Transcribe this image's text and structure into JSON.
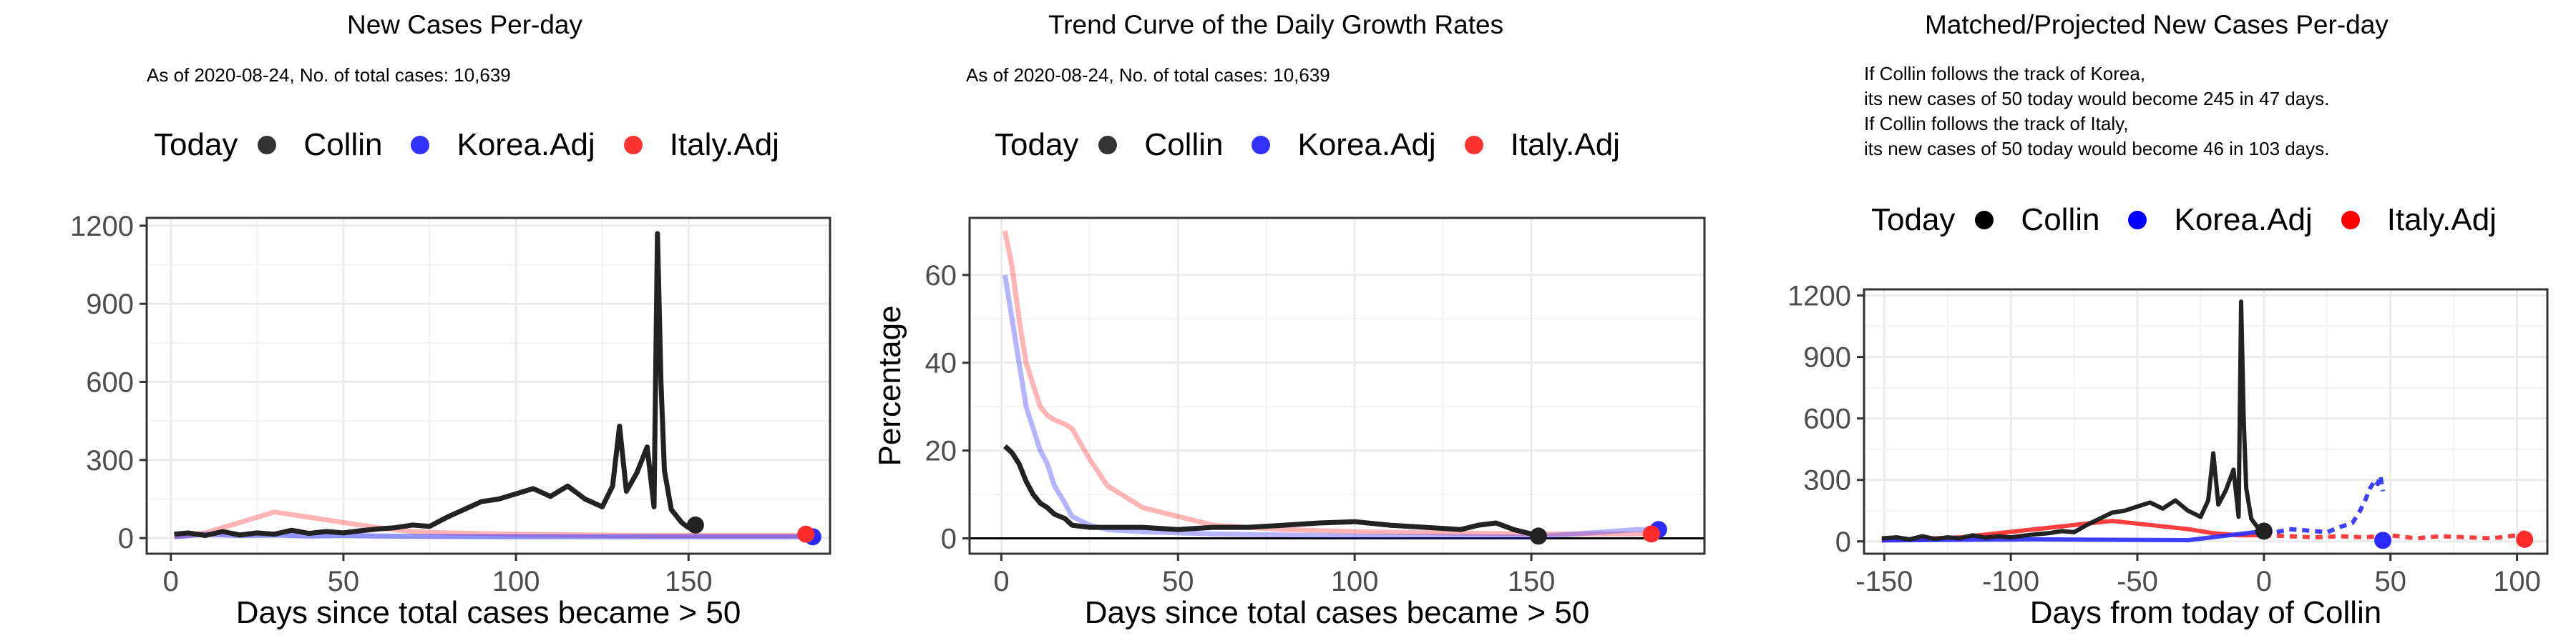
{
  "colors": {
    "collin": "#222222",
    "korea": "#2a2aff",
    "italy": "#ff2a2a",
    "grid": "#ebebeb",
    "frame": "#333333"
  },
  "legend": {
    "title": "Today",
    "items": [
      "Collin",
      "Korea.Adj",
      "Italy.Adj"
    ]
  },
  "panels": {
    "p1": {
      "title": "New Cases Per-day",
      "subtitle": "As of 2020-08-24, No. of total cases: 10,639"
    },
    "p2": {
      "title": "Trend Curve of the Daily Growth Rates",
      "subtitle": "As of 2020-08-24, No. of total cases: 10,639"
    },
    "p3": {
      "title": "Matched/Projected New Cases Per-day",
      "lines": [
        "If Collin follows the track of Korea,",
        "its new cases of 50 today would become 245 in 47 days.",
        "If Collin follows the track of Italy,",
        "its new cases of 50 today would become 46 in 103 days."
      ]
    }
  },
  "chart_data": [
    {
      "type": "line",
      "title": "New Cases Per-day",
      "subtitle": "As of 2020-08-24, No. of total cases: 10,639",
      "xlabel": "Days since total cases became > 50",
      "ylabel": "",
      "xlim": [
        -7,
        191
      ],
      "ylim": [
        -60,
        1230
      ],
      "xticks": [
        0,
        50,
        100,
        150
      ],
      "yticks": [
        0,
        300,
        600,
        900,
        1200
      ],
      "legend_title": "Today",
      "legend_position": "top",
      "grid": true,
      "series": [
        {
          "name": "Collin",
          "color": "#222222",
          "x": [
            1,
            5,
            10,
            15,
            20,
            25,
            30,
            35,
            40,
            45,
            50,
            55,
            60,
            65,
            70,
            75,
            80,
            85,
            90,
            95,
            100,
            105,
            110,
            115,
            120,
            125,
            128,
            130,
            132,
            135,
            138,
            140,
            141,
            142,
            143,
            145,
            148,
            150,
            152
          ],
          "y": [
            15,
            20,
            10,
            25,
            12,
            20,
            15,
            30,
            18,
            25,
            20,
            28,
            35,
            40,
            50,
            45,
            80,
            110,
            140,
            150,
            170,
            190,
            160,
            200,
            150,
            120,
            200,
            430,
            180,
            250,
            350,
            120,
            1170,
            600,
            260,
            110,
            60,
            40,
            50
          ]
        },
        {
          "name": "Korea.Adj",
          "color": "#2a2aff",
          "x": [
            1,
            10,
            20,
            30,
            40,
            50,
            60,
            80,
            100,
            120,
            140,
            160,
            180,
            185
          ],
          "y": [
            5,
            15,
            10,
            12,
            8,
            10,
            8,
            6,
            5,
            5,
            5,
            5,
            5,
            5
          ]
        },
        {
          "name": "Italy.Adj",
          "color": "#ff2a2a",
          "x": [
            1,
            10,
            20,
            25,
            30,
            35,
            40,
            45,
            50,
            60,
            70,
            80,
            100,
            120,
            140,
            160,
            180,
            185
          ],
          "y": [
            5,
            20,
            60,
            80,
            100,
            90,
            80,
            70,
            60,
            40,
            25,
            20,
            15,
            12,
            10,
            10,
            10,
            10
          ]
        }
      ],
      "today_points": [
        {
          "name": "Collin",
          "x": 152,
          "y": 50
        },
        {
          "name": "Korea.Adj",
          "x": 186,
          "y": 5
        },
        {
          "name": "Italy.Adj",
          "x": 184,
          "y": 15
        }
      ]
    },
    {
      "type": "line",
      "title": "Trend Curve of the Daily Growth Rates",
      "subtitle": "As of 2020-08-24, No. of total cases: 10,639",
      "xlabel": "Days since total cases became > 50",
      "ylabel": "Percentage",
      "xlim": [
        -9,
        199
      ],
      "ylim": [
        -3.5,
        73
      ],
      "xticks": [
        0,
        50,
        100,
        150
      ],
      "yticks": [
        0,
        20,
        40,
        60
      ],
      "legend_title": "Today",
      "legend_position": "top",
      "grid": true,
      "series": [
        {
          "name": "Collin",
          "color": "#222222",
          "x": [
            1,
            3,
            5,
            7,
            9,
            11,
            13,
            15,
            18,
            20,
            25,
            30,
            40,
            50,
            60,
            70,
            80,
            90,
            100,
            110,
            120,
            130,
            135,
            140,
            145,
            150,
            152
          ],
          "y": [
            21,
            19.5,
            17,
            13,
            10,
            8,
            7,
            5.5,
            4.5,
            3,
            2.5,
            2.5,
            2.5,
            2,
            2.5,
            2.5,
            3,
            3.5,
            3.8,
            3,
            2.5,
            2,
            3,
            3.5,
            2,
            1,
            1
          ]
        },
        {
          "name": "Korea.Adj",
          "color": "#2a2aff",
          "x": [
            1,
            3,
            5,
            7,
            9,
            11,
            13,
            15,
            18,
            20,
            25,
            30,
            40,
            60,
            100,
            150,
            180,
            185
          ],
          "y": [
            60,
            50,
            40,
            30,
            25,
            20,
            17,
            12,
            8,
            5,
            3,
            2,
            1.5,
            1,
            0.5,
            0.3,
            2,
            2
          ]
        },
        {
          "name": "Italy.Adj",
          "color": "#ff2a2a",
          "x": [
            1,
            3,
            5,
            7,
            9,
            11,
            13,
            15,
            18,
            20,
            25,
            30,
            40,
            50,
            60,
            80,
            100,
            150,
            180,
            185
          ],
          "y": [
            70,
            62,
            50,
            40,
            35,
            30,
            28,
            27,
            26,
            25,
            18,
            12,
            7,
            5,
            3,
            2,
            1.5,
            1,
            1,
            1
          ]
        }
      ],
      "today_points": [
        {
          "name": "Collin",
          "x": 152,
          "y": 0.5
        },
        {
          "name": "Korea.Adj",
          "x": 186,
          "y": 2
        },
        {
          "name": "Italy.Adj",
          "x": 184,
          "y": 1
        }
      ]
    },
    {
      "type": "line",
      "title": "Matched/Projected New Cases Per-day",
      "xlabel": "Days from today of Collin",
      "ylabel": "",
      "xlim": [
        -158,
        112
      ],
      "ylim": [
        -60,
        1230
      ],
      "xticks": [
        -150,
        -100,
        -50,
        0,
        50,
        100
      ],
      "yticks": [
        0,
        300,
        600,
        900,
        1200
      ],
      "legend_title": "Today",
      "legend_position": "top",
      "grid": true,
      "series": [
        {
          "name": "Collin",
          "color": "#222222",
          "x": [
            -151,
            -145,
            -140,
            -135,
            -130,
            -125,
            -120,
            -115,
            -110,
            -105,
            -100,
            -95,
            -90,
            -85,
            -80,
            -75,
            -70,
            -65,
            -60,
            -55,
            -50,
            -45,
            -40,
            -35,
            -30,
            -25,
            -22,
            -20,
            -18,
            -15,
            -12,
            -10,
            -9,
            -8,
            -7,
            -5,
            -2,
            0
          ],
          "y": [
            15,
            20,
            10,
            25,
            12,
            20,
            15,
            30,
            18,
            25,
            20,
            28,
            35,
            40,
            50,
            45,
            80,
            110,
            140,
            150,
            170,
            190,
            160,
            200,
            150,
            120,
            200,
            430,
            180,
            250,
            350,
            120,
            1170,
            600,
            260,
            110,
            60,
            50
          ]
        },
        {
          "name": "Korea.Adj",
          "color": "#2a2aff",
          "x": [
            -151,
            -120,
            -90,
            -60,
            -30,
            0,
            5,
            10,
            15,
            20,
            25,
            30,
            35,
            38,
            40,
            42,
            44,
            45,
            46,
            47
          ],
          "y": [
            5,
            8,
            10,
            8,
            6,
            50,
            45,
            60,
            55,
            50,
            45,
            70,
            90,
            150,
            200,
            260,
            300,
            280,
            320,
            245
          ]
        },
        {
          "name": "Italy.Adj",
          "color": "#ff2a2a",
          "x": [
            -151,
            -120,
            -90,
            -60,
            -45,
            -30,
            -20,
            -10,
            0,
            10,
            20,
            30,
            40,
            50,
            60,
            70,
            80,
            90,
            100,
            103
          ],
          "y": [
            5,
            20,
            60,
            100,
            80,
            60,
            40,
            30,
            30,
            25,
            20,
            25,
            20,
            30,
            15,
            25,
            20,
            15,
            30,
            46
          ]
        }
      ],
      "today_points": [
        {
          "name": "Collin",
          "x": 0,
          "y": 50
        },
        {
          "name": "Korea.Adj",
          "x": 47,
          "y": 5
        },
        {
          "name": "Italy.Adj",
          "x": 103,
          "y": 10
        }
      ]
    }
  ]
}
